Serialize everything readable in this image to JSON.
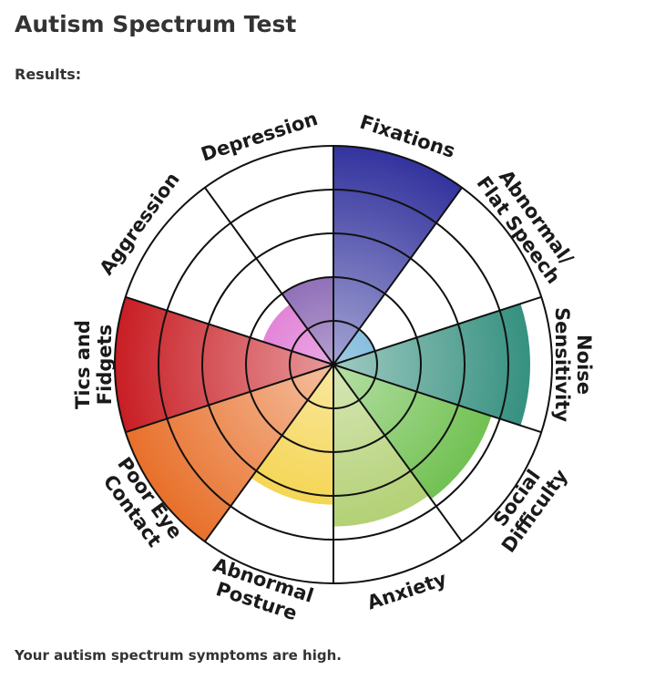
{
  "header": {
    "title": "Autism Spectrum Test",
    "subtitle": "Results:"
  },
  "chart_data": {
    "type": "polar-area",
    "categories": [
      [
        "Fixations"
      ],
      [
        "Abnormal/",
        "Flat Speech"
      ],
      [
        "Noise",
        "Sensitivity"
      ],
      [
        "Social",
        "Difficulty"
      ],
      [
        "Anxiety"
      ],
      [
        "Abnormal",
        "Posture"
      ],
      [
        "Poor Eye",
        "Contact"
      ],
      [
        "Tics and",
        "Fidgets"
      ],
      [
        "Aggression"
      ],
      [
        "Depression"
      ]
    ],
    "values": [
      5,
      1,
      4.5,
      3.8,
      3.7,
      3.2,
      5,
      5,
      1.7,
      2
    ],
    "colors": [
      "#33339e",
      "#2a8cc4",
      "#2a8a78",
      "#5cb838",
      "#a6c95e",
      "#f2cb2a",
      "#e8702a",
      "#c81e24",
      "#d23fc2",
      "#5a2a96"
    ],
    "rlim": [
      0,
      5
    ],
    "rticks": [
      1,
      2,
      3,
      4,
      5
    ]
  },
  "footer": {
    "text": "Your autism spectrum symptoms are high."
  }
}
